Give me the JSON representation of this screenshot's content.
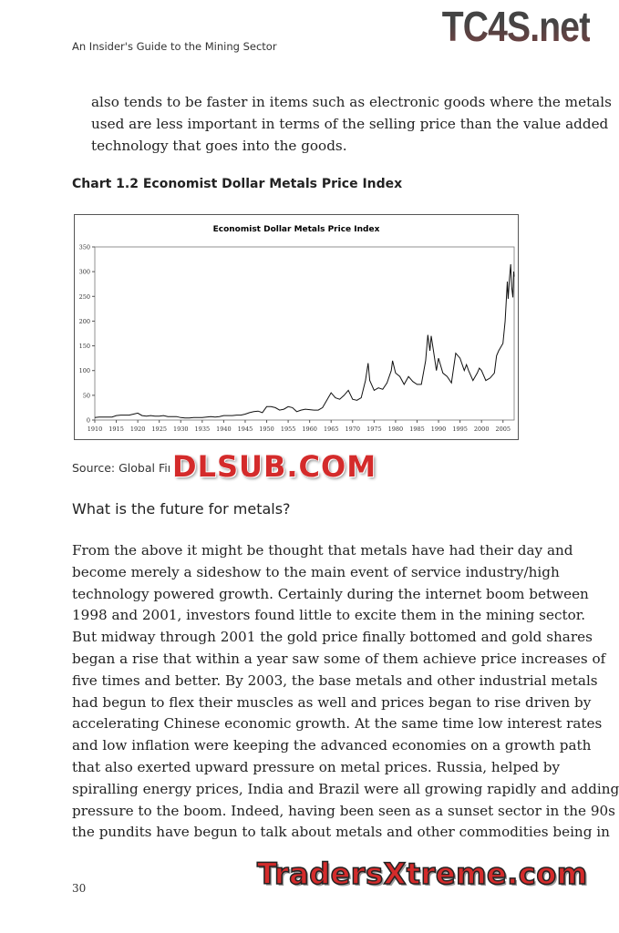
{
  "header": {
    "running_title": "An Insider's Guide to the Mining Sector",
    "watermark_logo": "TC4S.net"
  },
  "intro_paragraph": [
    "also tends to be faster in items such as electronic goods where the metals",
    "used are less important in terms of the selling price than the value added",
    "technology that goes into the goods."
  ],
  "chart_caption": "Chart 1.2 Economist Dollar Metals Price Index",
  "source": "Source: Global Fir",
  "watermark_center": "DLSUB.COM",
  "section_heading": "What is the future for metals?",
  "body_paragraph": [
    "From the above it might be thought that metals have had their day and",
    "become merely a sideshow to the main event of service industry/high",
    "technology powered growth. Certainly during the internet boom between",
    "1998 and 2001, investors found little to excite them in the mining sector.",
    "But midway through 2001 the gold price finally bottomed and gold shares",
    "began a rise that within a year saw some of them achieve price increases of",
    "five times and better. By 2003, the base metals and other industrial metals",
    "had begun to flex their muscles as well and prices began to rise driven by",
    "accelerating Chinese economic growth. At the same time low interest rates",
    "and low inflation were keeping the advanced economies on a growth path",
    "that also exerted upward pressure on metal prices. Russia, helped by",
    "spiralling energy prices, India and Brazil were all growing rapidly and adding",
    "pressure to the boom. Indeed, having been seen as a sunset sector in the 90s",
    "the pundits have begun to talk about metals and other commodities being in"
  ],
  "page_number": "30",
  "watermark_bottom": "TradersXtreme.com",
  "chart_data": {
    "type": "line",
    "title": "Economist Dollar Metals Price Index",
    "xlabel": "",
    "ylabel": "",
    "xlim": [
      1910,
      2007.6
    ],
    "ylim": [
      0,
      350
    ],
    "x_ticks": [
      "1910",
      "1915",
      "1920",
      "1925",
      "1930",
      "1935",
      "1940",
      "1945",
      "1950",
      "1955",
      "1960",
      "1965",
      "1970",
      "1975",
      "1980",
      "1985",
      "1990",
      "1995",
      "2000",
      "2005"
    ],
    "y_ticks": [
      "0",
      "50",
      "100",
      "150",
      "200",
      "250",
      "300",
      "350"
    ],
    "grid": false,
    "line_color": "#111111",
    "points": [
      [
        1910,
        5
      ],
      [
        1911,
        6
      ],
      [
        1912,
        6
      ],
      [
        1913,
        6
      ],
      [
        1914,
        6
      ],
      [
        1915,
        9
      ],
      [
        1916,
        10
      ],
      [
        1917,
        10
      ],
      [
        1918,
        10
      ],
      [
        1919,
        12
      ],
      [
        1920,
        14
      ],
      [
        1921,
        9
      ],
      [
        1922,
        8
      ],
      [
        1923,
        9
      ],
      [
        1924,
        8
      ],
      [
        1925,
        8
      ],
      [
        1926,
        9
      ],
      [
        1927,
        7
      ],
      [
        1928,
        7
      ],
      [
        1929,
        7
      ],
      [
        1930,
        5
      ],
      [
        1931,
        4
      ],
      [
        1932,
        4
      ],
      [
        1933,
        5
      ],
      [
        1934,
        5
      ],
      [
        1935,
        5
      ],
      [
        1936,
        6
      ],
      [
        1937,
        7
      ],
      [
        1938,
        6
      ],
      [
        1939,
        7
      ],
      [
        1940,
        9
      ],
      [
        1941,
        9
      ],
      [
        1942,
        9
      ],
      [
        1943,
        10
      ],
      [
        1944,
        10
      ],
      [
        1945,
        12
      ],
      [
        1946,
        15
      ],
      [
        1947,
        17
      ],
      [
        1948,
        18
      ],
      [
        1949,
        15
      ],
      [
        1950,
        27
      ],
      [
        1951,
        27
      ],
      [
        1952,
        25
      ],
      [
        1953,
        20
      ],
      [
        1954,
        22
      ],
      [
        1955,
        27
      ],
      [
        1956,
        25
      ],
      [
        1957,
        17
      ],
      [
        1958,
        20
      ],
      [
        1959,
        22
      ],
      [
        1960,
        21
      ],
      [
        1961,
        20
      ],
      [
        1962,
        20
      ],
      [
        1963,
        25
      ],
      [
        1964,
        40
      ],
      [
        1965,
        55
      ],
      [
        1966,
        45
      ],
      [
        1967,
        42
      ],
      [
        1968,
        50
      ],
      [
        1969,
        60
      ],
      [
        1970,
        42
      ],
      [
        1971,
        40
      ],
      [
        1972,
        45
      ],
      [
        1973,
        80
      ],
      [
        1973.6,
        115
      ],
      [
        1974,
        80
      ],
      [
        1975,
        60
      ],
      [
        1976,
        65
      ],
      [
        1977,
        62
      ],
      [
        1978,
        75
      ],
      [
        1979,
        100
      ],
      [
        1979.3,
        120
      ],
      [
        1980,
        95
      ],
      [
        1981,
        88
      ],
      [
        1982,
        72
      ],
      [
        1983,
        88
      ],
      [
        1984,
        78
      ],
      [
        1985,
        72
      ],
      [
        1986,
        72
      ],
      [
        1987,
        120
      ],
      [
        1987.5,
        172
      ],
      [
        1988,
        140
      ],
      [
        1988.3,
        170
      ],
      [
        1989,
        130
      ],
      [
        1989.5,
        100
      ],
      [
        1990,
        125
      ],
      [
        1991,
        95
      ],
      [
        1992,
        88
      ],
      [
        1993,
        75
      ],
      [
        1994,
        135
      ],
      [
        1995,
        125
      ],
      [
        1996,
        100
      ],
      [
        1996.5,
        112
      ],
      [
        1997,
        100
      ],
      [
        1998,
        80
      ],
      [
        1999,
        95
      ],
      [
        1999.5,
        105
      ],
      [
        2000,
        100
      ],
      [
        2001,
        80
      ],
      [
        2002,
        85
      ],
      [
        2003,
        95
      ],
      [
        2003.5,
        130
      ],
      [
        2004,
        140
      ],
      [
        2005,
        155
      ],
      [
        2005.5,
        200
      ],
      [
        2006,
        280
      ],
      [
        2006.2,
        245
      ],
      [
        2006.5,
        285
      ],
      [
        2006.8,
        315
      ],
      [
        2007,
        270
      ],
      [
        2007.3,
        248
      ],
      [
        2007.5,
        300
      ],
      [
        2007.6,
        290
      ]
    ]
  }
}
